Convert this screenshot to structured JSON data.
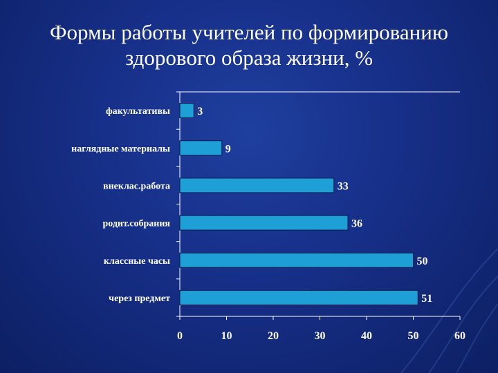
{
  "slide": {
    "title_line1": "Формы работы учителей по формированию",
    "title_line2": "здорового образа жизни, %"
  },
  "colors": {
    "background": "#17308a",
    "bar": "#1e9fd6",
    "bar_border": "#0b1a4a",
    "text": "#ffffff"
  },
  "chart_data": {
    "type": "bar",
    "orientation": "horizontal",
    "categories": [
      "факультативы",
      "наглядные материалы",
      "внеклас.работа",
      "родит.собрания",
      "классные часы",
      "через предмет"
    ],
    "values": [
      3,
      9,
      33,
      36,
      50,
      51
    ],
    "data_labels": [
      "3",
      "9",
      "33",
      "36",
      "50",
      "51"
    ],
    "xlim": [
      0,
      60
    ],
    "x_ticks": [
      0,
      10,
      20,
      30,
      40,
      50,
      60
    ],
    "x_tick_labels": [
      "0",
      "10",
      "20",
      "30",
      "40",
      "50",
      "60"
    ],
    "grid": false,
    "legend": "none"
  }
}
